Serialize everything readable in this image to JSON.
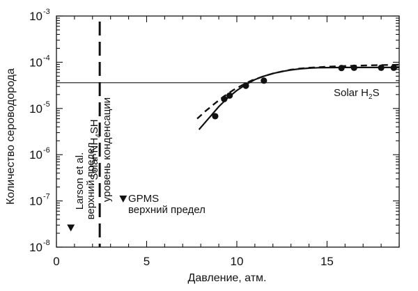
{
  "chart_data": {
    "type": "scatter",
    "xlabel": "Давление, атм.",
    "ylabel": "Количество сероводорода",
    "xlim": [
      0,
      19
    ],
    "ylim": [
      1e-08,
      0.001
    ],
    "yscale": "log",
    "xticks": [
      0,
      5,
      10,
      15
    ],
    "yticks": [
      {
        "value": 1e-08,
        "base": "10",
        "exp": "-8"
      },
      {
        "value": 1e-07,
        "base": "10",
        "exp": "-7"
      },
      {
        "value": 1e-06,
        "base": "10",
        "exp": "-6"
      },
      {
        "value": 1e-05,
        "base": "10",
        "exp": "-5"
      },
      {
        "value": 0.0001,
        "base": "10",
        "exp": "-4"
      },
      {
        "value": 0.001,
        "base": "10",
        "exp": "-3"
      }
    ],
    "grid": false,
    "series": [
      {
        "marker": "circle",
        "points": [
          [
            8.8,
            6.8e-06
          ],
          [
            9.3,
            1.6e-05
          ],
          [
            9.6,
            1.9e-05
          ],
          [
            10.5,
            3.1e-05
          ],
          [
            11.5,
            4e-05
          ],
          [
            15.8,
            7.5e-05
          ],
          [
            16.5,
            7.6e-05
          ],
          [
            18.0,
            7.6e-05
          ],
          [
            18.7,
            7.6e-05
          ]
        ]
      },
      {
        "style": "solid",
        "points": [
          [
            7.9,
            3.5e-06
          ],
          [
            8.5,
            6.5e-06
          ],
          [
            9.0,
            1.1e-05
          ],
          [
            9.5,
            1.7e-05
          ],
          [
            10.0,
            2.45e-05
          ],
          [
            10.5,
            3.3e-05
          ],
          [
            11.0,
            4.2e-05
          ],
          [
            11.5,
            5e-05
          ],
          [
            12.0,
            5.7e-05
          ],
          [
            12.5,
            6.3e-05
          ],
          [
            13.0,
            6.8e-05
          ],
          [
            13.5,
            7.2e-05
          ],
          [
            14.0,
            7.45e-05
          ],
          [
            14.5,
            7.6e-05
          ],
          [
            15.0,
            7.65e-05
          ],
          [
            16.0,
            7.7e-05
          ],
          [
            17.0,
            7.7e-05
          ],
          [
            18.0,
            7.7e-05
          ],
          [
            19.0,
            7.7e-05
          ]
        ]
      },
      {
        "style": "dashed",
        "points": [
          [
            7.8,
            6e-06
          ],
          [
            8.3,
            9e-06
          ],
          [
            8.8,
            1.3e-05
          ],
          [
            9.3,
            1.85e-05
          ],
          [
            9.8,
            2.5e-05
          ],
          [
            10.3,
            3.2e-05
          ],
          [
            10.8,
            4e-05
          ],
          [
            11.5,
            5e-05
          ],
          [
            12.0,
            5.7e-05
          ],
          [
            12.5,
            6.3e-05
          ],
          [
            13.0,
            6.9e-05
          ],
          [
            13.5,
            7.3e-05
          ],
          [
            14.0,
            7.6e-05
          ],
          [
            14.5,
            7.8e-05
          ],
          [
            15.0,
            8e-05
          ],
          [
            16.0,
            8.3e-05
          ],
          [
            17.0,
            8.5e-05
          ],
          [
            18.0,
            8.7e-05
          ],
          [
            19.0,
            8.8e-05
          ]
        ]
      }
    ],
    "solar_h2s": {
      "value": 3.6e-05,
      "label": "Solar H",
      "label_sub": "2",
      "label_end": "S"
    },
    "nh4sh_condensation": {
      "pressure": 2.4,
      "label_line1_a": "Solar NH",
      "label_line1_sub1": "4",
      "label_line1_b": "SH",
      "label_line2": "уровень конденсации"
    },
    "upper_limits": [
      {
        "pressure": 0.8,
        "value": 2.6e-08,
        "label_line1": "Larson et al.",
        "label_line2": "верхний предел"
      },
      {
        "pressure": 3.7,
        "value": 1.1e-07,
        "label_line1": "GPMS",
        "label_line2": "верхний предел"
      }
    ]
  }
}
